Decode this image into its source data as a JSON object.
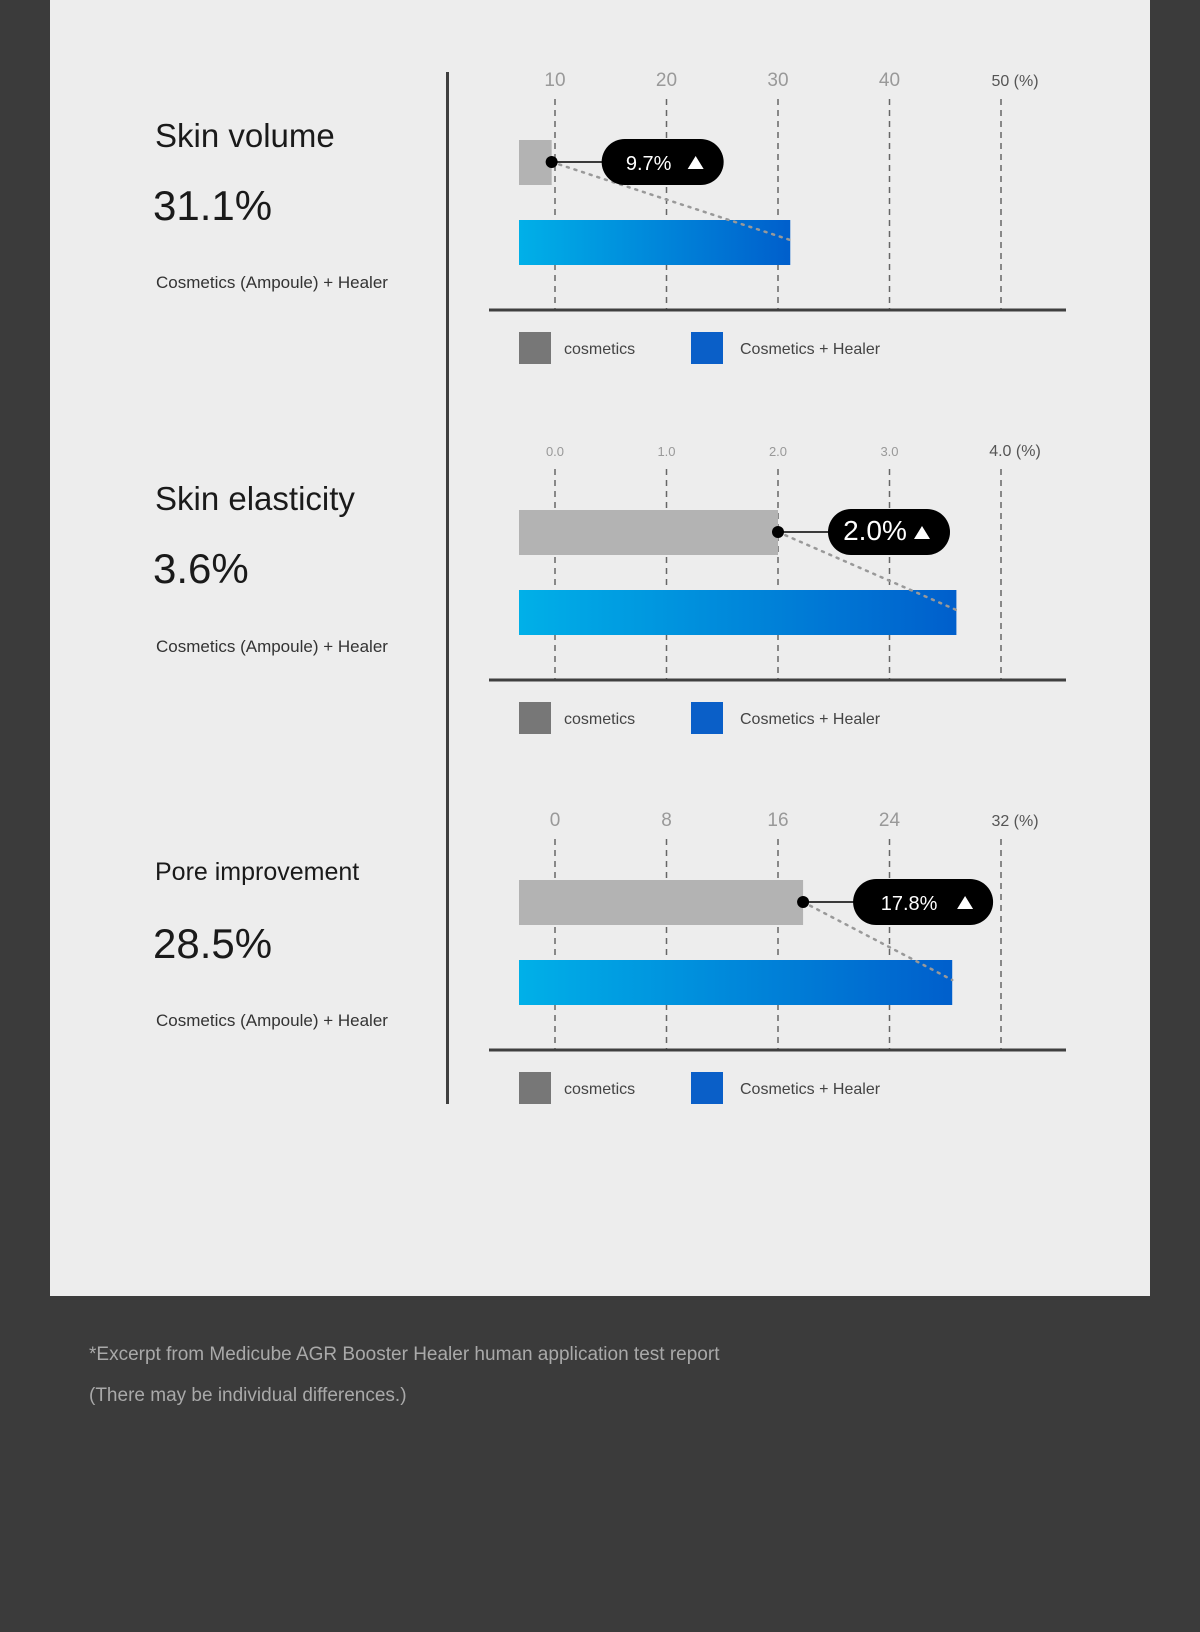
{
  "colors": {
    "background": "#3b3b3b",
    "panel": "#ededed",
    "cosmetics_bar": "#b3b3b3",
    "cosmetics_legend": "#777777",
    "healer_start": "#00b0e8",
    "healer_end": "#005fcc",
    "healer_legend": "#0a5fc8"
  },
  "metrics": [
    {
      "title": "Skin volume",
      "value": "31.1%",
      "subtitle": "Cosmetics (Ampoule) + Healer"
    },
    {
      "title": "Skin elasticity",
      "value": "3.6%",
      "subtitle": "Cosmetics (Ampoule) + Healer"
    },
    {
      "title": "Pore improvement",
      "value": "28.5%",
      "subtitle": "Cosmetics (Ampoule) + Healer"
    }
  ],
  "chart_data": [
    {
      "type": "bar",
      "orientation": "horizontal",
      "tick_labels": [
        "10",
        "20",
        "30",
        "40",
        "50 (%)"
      ],
      "ticks": [
        10,
        20,
        30,
        40,
        50
      ],
      "grid": true,
      "series": [
        {
          "name": "cosmetics",
          "value": 9.7
        },
        {
          "name": "Cosmetics + Healer",
          "value": 31.1
        }
      ],
      "callout": "9.7%",
      "legend": [
        "cosmetics",
        "Cosmetics + Healer"
      ],
      "legend_position": "bottom"
    },
    {
      "type": "bar",
      "orientation": "horizontal",
      "tick_labels": [
        "0.0",
        "1.0",
        "2.0",
        "3.0",
        "4.0 (%)"
      ],
      "ticks": [
        0,
        1,
        2,
        3,
        4
      ],
      "grid": true,
      "series": [
        {
          "name": "cosmetics",
          "value": 2.0
        },
        {
          "name": "Cosmetics + Healer",
          "value": 3.6
        }
      ],
      "callout": "2.0%",
      "legend": [
        "cosmetics",
        "Cosmetics + Healer"
      ],
      "legend_position": "bottom"
    },
    {
      "type": "bar",
      "orientation": "horizontal",
      "tick_labels": [
        "0",
        "8",
        "16",
        "24",
        "32 (%)"
      ],
      "ticks": [
        0,
        8,
        16,
        24,
        32
      ],
      "grid": true,
      "series": [
        {
          "name": "cosmetics",
          "value": 17.8
        },
        {
          "name": "Cosmetics + Healer",
          "value": 28.5
        }
      ],
      "callout": "17.8%",
      "legend": [
        "cosmetics",
        "Cosmetics + Healer"
      ],
      "legend_position": "bottom"
    }
  ],
  "footer": {
    "source": "*Excerpt from Medicube AGR Booster Healer human application test report",
    "note": "(There may be individual differences.)"
  }
}
